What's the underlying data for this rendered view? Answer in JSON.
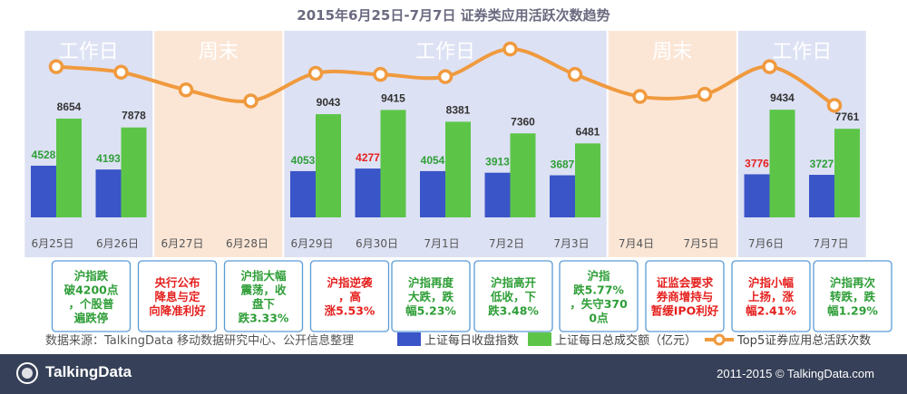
{
  "chart_data": {
    "type": "bar",
    "title": "2015年6月25日-7月7日  证券类应用活跃次数趋势",
    "categories": [
      "6月25日",
      "6月26日",
      "6月27日",
      "6月28日",
      "6月29日",
      "6月30日",
      "7月1日",
      "7月2日",
      "7月3日",
      "7月4日",
      "7月5日",
      "7月6日",
      "7月7日"
    ],
    "series": [
      {
        "name": "上证每日收盘指数",
        "kind": "bar",
        "color": "#3a55c8",
        "values": [
          4528,
          4193,
          null,
          null,
          4053,
          4277,
          4054,
          3913,
          3687,
          null,
          null,
          3776,
          3727
        ],
        "labels": [
          "4528",
          "4193",
          "",
          "",
          "4053",
          "4277",
          "4054",
          "3913",
          "3687",
          "",
          "",
          "3776",
          "3727"
        ],
        "label_colors": [
          "#2e9e37",
          "#2e9e37",
          "",
          "",
          "#2e9e37",
          "#e5201e",
          "#2e9e37",
          "#2e9e37",
          "#2e9e37",
          "",
          "",
          "#e5201e",
          "#2e9e37"
        ]
      },
      {
        "name": "上证每日总成交额（亿元）",
        "kind": "bar",
        "color": "#5cc548",
        "values": [
          8654,
          7878,
          null,
          null,
          9043,
          9415,
          8381,
          7360,
          6481,
          null,
          null,
          9434,
          7761
        ],
        "labels": [
          "8654",
          "7878",
          "",
          "",
          "9043",
          "9415",
          "8381",
          "7360",
          "6481",
          "",
          "",
          "9434",
          "7761"
        ]
      },
      {
        "name": "Top5证券应用总活跃次数",
        "kind": "line",
        "color": "#f09a3e",
        "values": [
          0.79,
          0.74,
          0.58,
          0.48,
          0.73,
          0.72,
          0.7,
          0.95,
          0.72,
          0.52,
          0.54,
          0.79,
          0.44
        ]
      }
    ],
    "periods": [
      {
        "label": "工作日",
        "type": "workday",
        "from": 0,
        "to": 1
      },
      {
        "label": "周末",
        "type": "weekend",
        "from": 2,
        "to": 3
      },
      {
        "label": "工作日",
        "type": "workday",
        "from": 4,
        "to": 8
      },
      {
        "label": "周末",
        "type": "weekend",
        "from": 9,
        "to": 10
      },
      {
        "label": "工作日",
        "type": "workday",
        "from": 11,
        "to": 12
      }
    ],
    "annotations": [
      {
        "text": "沪指跌\n破4200点\n，个股普\n遍跌停",
        "color": "#2e9e37"
      },
      {
        "text": "央行公布\n降息与定\n向降准利好",
        "color": "#e5201e"
      },
      {
        "text": "沪指大幅\n震荡，收\n盘下\n跌3.33%",
        "color": "#2e9e37"
      },
      {
        "text": "沪指逆袭\n，高\n涨5.53%",
        "color": "#e5201e"
      },
      {
        "text": "沪指再度\n大跌，跌\n幅5.23%",
        "color": "#2e9e37"
      },
      {
        "text": "沪指高开\n低收，下\n跌3.48%",
        "color": "#2e9e37"
      },
      {
        "text": "沪指\n跌5.77%\n，失守370\n0点",
        "color": "#2e9e37"
      },
      {
        "text": "证监会要求\n券商增持与\n暂缓IPO利好",
        "color": "#e5201e"
      },
      {
        "text": "沪指小幅\n上扬，涨\n幅2.41%",
        "color": "#e5201e"
      },
      {
        "text": "沪指再次\n转跌，跌\n幅1.29%",
        "color": "#2e9e37"
      }
    ],
    "ylim_bars": [
      0,
      10000
    ],
    "grid": false,
    "legend_position": "bottom"
  },
  "source_note": "数据来源：TalkingData 移动数据研究中心、公开信息整理",
  "footer": {
    "logo": "TalkingData",
    "copyright": "2011-2015 © TalkingData.com"
  },
  "colors": {
    "workday_bg": "#dde1f4",
    "weekend_bg": "#fbe6d6",
    "footer_bg": "#364058",
    "label_box_border": "#5b9bd5",
    "tick_text": "#555555"
  }
}
